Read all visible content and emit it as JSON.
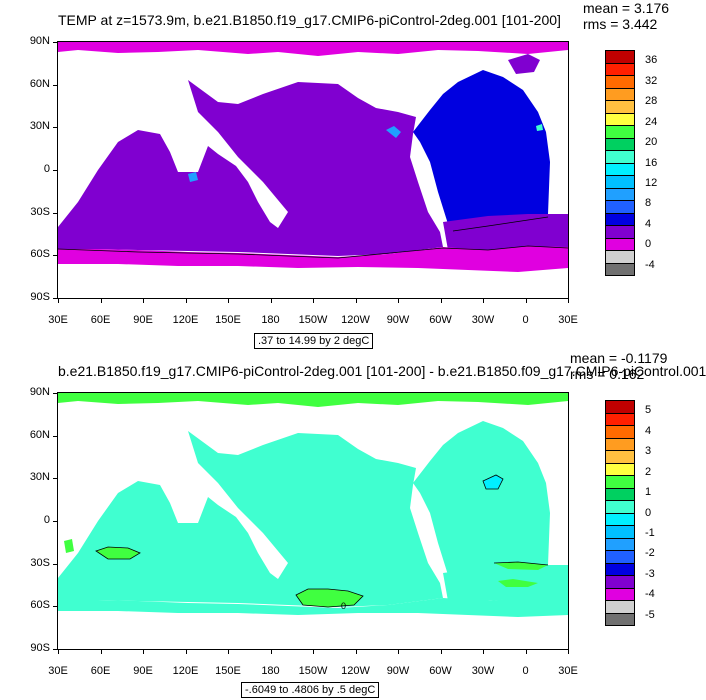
{
  "panels": [
    {
      "title": "TEMP at z=1573.9m, b.e21.B1850.f19_g17.CMIP6-piControl-2deg.001 [101-200]",
      "mean": "mean = 3.176",
      "rms": "rms = 3.442",
      "range_label": ".37 to 14.99 by 2 degC",
      "colorbar_labels": [
        "36",
        "32",
        "28",
        "24",
        "20",
        "16",
        "12",
        "8",
        "4",
        "0",
        "-4"
      ],
      "colorbar_colors": [
        "#c00000",
        "#ff2000",
        "#ff6a00",
        "#ff9c20",
        "#ffc040",
        "#ffff40",
        "#40ff40",
        "#00d060",
        "#40ffd0",
        "#00f0ff",
        "#00c0ff",
        "#20a0ff",
        "#2060ff",
        "#0000e0",
        "#8000d0",
        "#e000e0",
        "#d0d0d0",
        "#707070"
      ],
      "map_fill": {
        "main_ocean": "#8000d0",
        "atlantic": "#0000e0",
        "polar": "#e000e0",
        "indo_spots": "#20a0ff",
        "arctic_spot": "#8000d0",
        "small_spots": "#40ffd0"
      }
    },
    {
      "title": "b.e21.B1850.f19_g17.CMIP6-piControl-2deg.001 [101-200] - b.e21.B1850.f09_g17.CMIP6-piControl.001",
      "mean": "mean = -0.1179",
      "rms": "rms = 0.162",
      "range_label": "-.6049 to .4806 by .5 degC",
      "colorbar_labels": [
        "5",
        "4",
        "3",
        "2",
        "1",
        "0",
        "-1",
        "-2",
        "-3",
        "-4",
        "-5"
      ],
      "colorbar_colors": [
        "#c00000",
        "#ff2000",
        "#ff6a00",
        "#ff9c20",
        "#ffc040",
        "#ffff40",
        "#40ff40",
        "#00d060",
        "#40ffd0",
        "#00f0ff",
        "#00c0ff",
        "#20a0ff",
        "#2060ff",
        "#0000e0",
        "#8000d0",
        "#e000e0",
        "#d0d0d0",
        "#707070"
      ],
      "map_fill": {
        "main_ocean": "#40ffd0",
        "polar": "#40ff40",
        "green_patch": "#40ff40",
        "cyan_spot": "#00f0ff"
      },
      "contour_label": "0"
    }
  ],
  "axes": {
    "lat_labels": [
      "90N",
      "60N",
      "30N",
      "0",
      "30S",
      "60S",
      "90S"
    ],
    "lon_labels": [
      "30E",
      "60E",
      "90E",
      "120E",
      "150E",
      "180",
      "150W",
      "120W",
      "90W",
      "60W",
      "30W",
      "0",
      "30E"
    ]
  }
}
